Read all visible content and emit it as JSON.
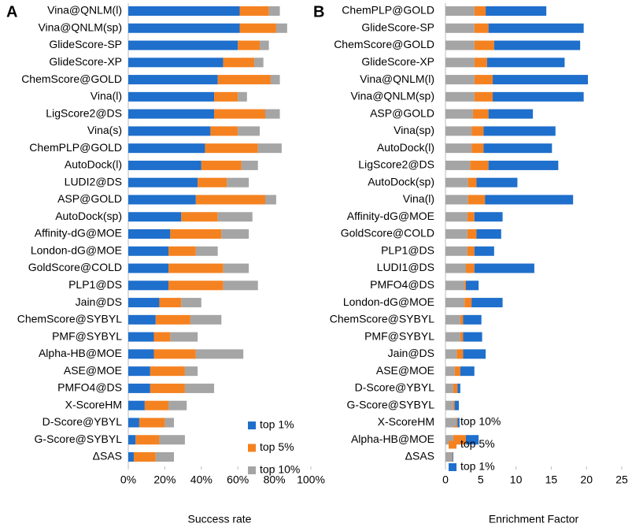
{
  "chart_data": [
    {
      "type": "bar",
      "orientation": "horizontal",
      "stacked": true,
      "panel_label": "A",
      "x_label": "Success rate",
      "categories": [
        "Vina@QNLM(l)",
        "Vina@QNLM(sp)",
        "GlideScore-SP",
        "GlideScore-XP",
        "ChemScore@GOLD",
        "Vina(l)",
        "LigScore2@DS",
        "Vina(s)",
        "ChemPLP@GOLD",
        "AutoDock(l)",
        "LUDI2@DS",
        "ASP@GOLD",
        "AutoDock(sp)",
        "Affinity-dG@MOE",
        "London-dG@MOE",
        "GoldScore@COLD",
        "PLP1@DS",
        "Jain@DS",
        "ChemScore@SYBYL",
        "PMF@SYBYL",
        "Alpha-HB@MOE",
        "ASE@MOE",
        "PMFO4@DS",
        "X-ScoreHM",
        "D-Score@YBYL",
        "G-Score@SYBYL",
        "ΔSAS"
      ],
      "series": [
        {
          "name": "top 1%",
          "color": "#1f6fcc",
          "values": [
            61,
            61,
            60,
            52,
            49,
            47,
            47,
            45,
            42,
            40,
            38,
            37,
            29,
            23,
            22,
            22,
            22,
            17,
            15,
            14,
            14,
            12,
            12,
            9,
            6,
            4,
            3
          ]
        },
        {
          "name": "top 5%",
          "color": "#f58220",
          "values": [
            16,
            20,
            12,
            17,
            29,
            13,
            28,
            15,
            29,
            22,
            16,
            38,
            20,
            28,
            15,
            30,
            30,
            12,
            19,
            9,
            23,
            19,
            19,
            13,
            14,
            13,
            12
          ]
        },
        {
          "name": "top 10%",
          "color": "#a5a5a5",
          "values": [
            6,
            6,
            5,
            5,
            5,
            5,
            8,
            12,
            13,
            9,
            12,
            6,
            19,
            15,
            12,
            14,
            19,
            11,
            17,
            15,
            26,
            7,
            16,
            10,
            5,
            14,
            10
          ]
        }
      ],
      "xlim": [
        0,
        100
      ],
      "xticks": [
        {
          "value": 0,
          "label": "0%"
        },
        {
          "value": 20,
          "label": "20%"
        },
        {
          "value": 40,
          "label": "40%"
        },
        {
          "value": 60,
          "label": "60%"
        },
        {
          "value": 80,
          "label": "80%"
        },
        {
          "value": 100,
          "label": "100%"
        }
      ],
      "legend": "lower right"
    },
    {
      "type": "bar",
      "orientation": "horizontal",
      "stacked": true,
      "panel_label": "B",
      "x_label": "Enrichment Factor",
      "categories": [
        "ChemPLP@GOLD",
        "GlideScore-SP",
        "ChemScore@GOLD",
        "GlideScore-XP",
        "Vina@QNLM(l)",
        "Vina@QNLM(sp)",
        "ASP@GOLD",
        "Vina(sp)",
        "AutoDock(l)",
        "LigScore2@DS",
        "AutoDock(sp)",
        "Vina(l)",
        "Affinity-dG@MOE",
        "GoldScore@COLD",
        "PLP1@DS",
        "LUDI1@DS",
        "PMFO4@DS",
        "London-dG@MOE",
        "ChemScore@SYBYL",
        "PMF@SYBYL",
        "Jain@DS",
        "ASE@MOE",
        "D-Score@YBYL",
        "G-Score@SYBYL",
        "X-ScoreHM",
        "Alpha-HB@MOE",
        "ΔSAS"
      ],
      "series": [
        {
          "name": "top 10%",
          "color": "#a5a5a5",
          "values": [
            4.1,
            4.1,
            4.1,
            4.1,
            4.1,
            4.1,
            3.9,
            3.7,
            3.7,
            3.5,
            3.2,
            3.2,
            3.1,
            3.1,
            3.1,
            2.9,
            2.7,
            2.7,
            2.1,
            2.1,
            1.6,
            1.3,
            1.1,
            1.1,
            1.1,
            1.1,
            0.9
          ]
        },
        {
          "name": "top 5%",
          "color": "#f58220",
          "values": [
            1.6,
            2.0,
            2.8,
            1.8,
            2.6,
            2.6,
            2.2,
            1.7,
            1.7,
            2.6,
            1.2,
            2.4,
            1.0,
            1.3,
            1.0,
            1.2,
            0.2,
            1.0,
            0.4,
            0.4,
            0.9,
            0.8,
            0.6,
            0.2,
            0.6,
            1.8,
            0.1
          ]
        },
        {
          "name": "top 1%",
          "color": "#1f6fcc",
          "values": [
            8.6,
            13.5,
            12.2,
            11.0,
            13.5,
            12.9,
            6.3,
            10.2,
            9.7,
            9.9,
            5.8,
            12.5,
            4.0,
            3.5,
            2.8,
            8.5,
            1.8,
            4.4,
            2.6,
            2.7,
            3.2,
            2.0,
            0.4,
            0.6,
            0.3,
            1.8,
            0.1
          ]
        }
      ],
      "xlim": [
        0,
        25
      ],
      "xticks": [
        0,
        5,
        10,
        15,
        20,
        25
      ],
      "legend": "lower right"
    }
  ]
}
